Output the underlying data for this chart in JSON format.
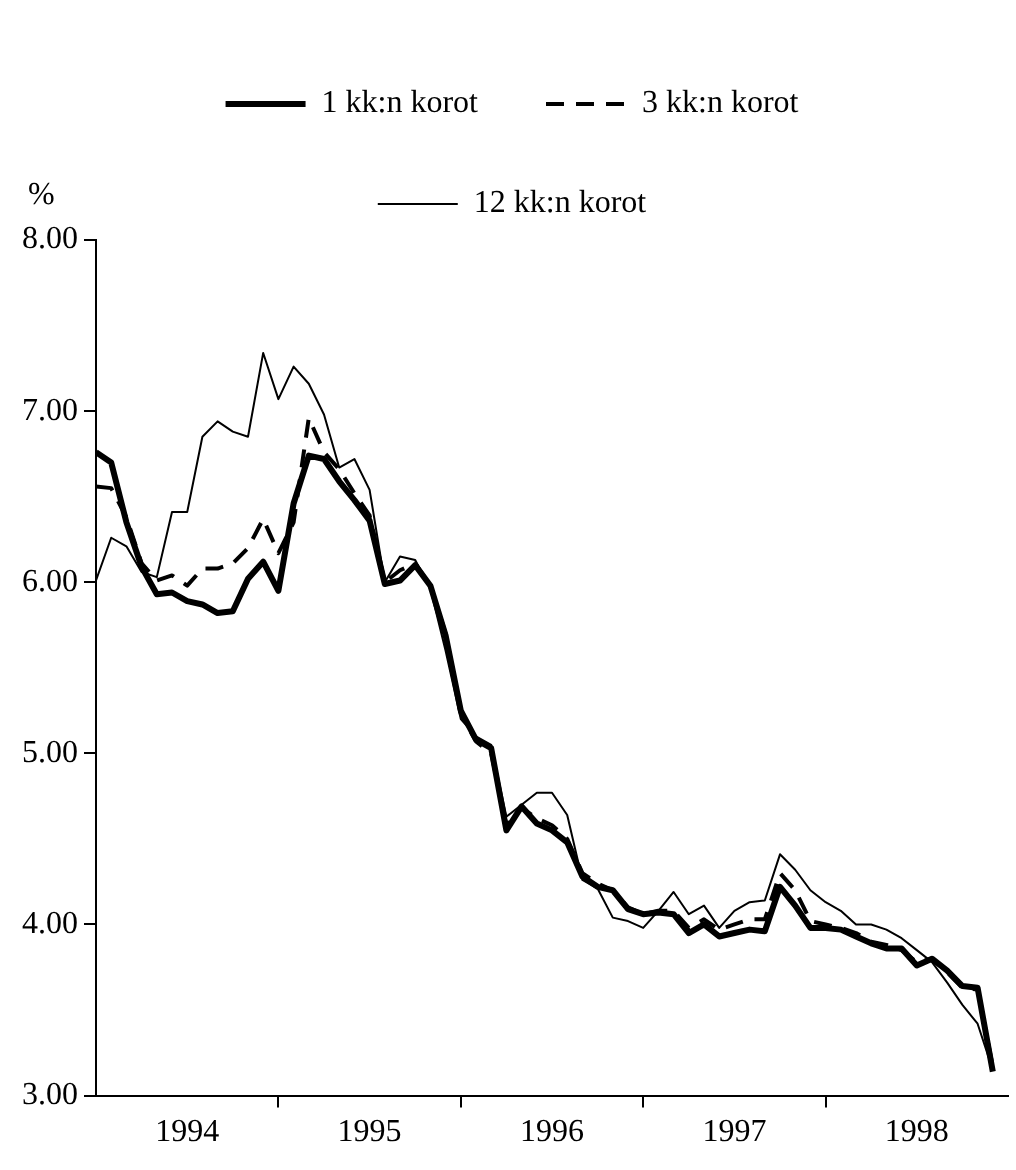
{
  "chart_data": {
    "type": "line",
    "ylabel": "%",
    "x": [
      "1994-01",
      "1994-02",
      "1994-03",
      "1994-04",
      "1994-05",
      "1994-06",
      "1994-07",
      "1994-08",
      "1994-09",
      "1994-10",
      "1994-11",
      "1994-12",
      "1995-01",
      "1995-02",
      "1995-03",
      "1995-04",
      "1995-05",
      "1995-06",
      "1995-07",
      "1995-08",
      "1995-09",
      "1995-10",
      "1995-11",
      "1995-12",
      "1996-01",
      "1996-02",
      "1996-03",
      "1996-04",
      "1996-05",
      "1996-06",
      "1996-07",
      "1996-08",
      "1996-09",
      "1996-10",
      "1996-11",
      "1996-12",
      "1997-01",
      "1997-02",
      "1997-03",
      "1997-04",
      "1997-05",
      "1997-06",
      "1997-07",
      "1997-08",
      "1997-09",
      "1997-10",
      "1997-11",
      "1997-12",
      "1998-01",
      "1998-02",
      "1998-03",
      "1998-04",
      "1998-05",
      "1998-06",
      "1998-07",
      "1998-08",
      "1998-09",
      "1998-10",
      "1998-11",
      "1998-12"
    ],
    "series": [
      {
        "name": "1 kk:n korot",
        "color": "#000000",
        "line_style": "solid",
        "values": [
          6.76,
          6.7,
          6.35,
          6.09,
          5.93,
          5.94,
          5.89,
          5.87,
          5.82,
          5.83,
          6.02,
          6.12,
          5.95,
          6.46,
          6.74,
          6.72,
          6.59,
          6.48,
          6.36,
          5.99,
          6.01,
          6.1,
          5.98,
          5.69,
          5.25,
          5.08,
          5.03,
          4.55,
          4.69,
          4.59,
          4.55,
          4.48,
          4.28,
          4.22,
          4.2,
          4.09,
          4.06,
          4.07,
          4.06,
          3.95,
          4.0,
          3.93,
          3.95,
          3.97,
          3.96,
          4.22,
          4.11,
          3.98,
          3.98,
          3.97,
          3.93,
          3.89,
          3.86,
          3.86,
          3.76,
          3.8,
          3.73,
          3.64,
          3.63,
          3.14
        ]
      },
      {
        "name": "3 kk:n korot",
        "color": "#000000",
        "line_style": "dashed",
        "values": [
          6.56,
          6.55,
          6.38,
          6.11,
          6.01,
          6.04,
          5.98,
          6.08,
          6.08,
          6.11,
          6.2,
          6.37,
          6.17,
          6.35,
          6.96,
          6.76,
          6.66,
          6.52,
          6.39,
          6.0,
          6.07,
          6.11,
          5.98,
          5.7,
          5.23,
          5.07,
          5.0,
          4.58,
          4.68,
          4.62,
          4.58,
          4.5,
          4.3,
          4.24,
          4.2,
          4.1,
          4.06,
          4.08,
          4.08,
          3.98,
          4.03,
          3.97,
          4.0,
          4.03,
          4.03,
          4.3,
          4.2,
          4.02,
          4.0,
          3.98,
          3.95,
          3.9,
          3.88,
          3.85,
          3.78,
          3.8,
          3.72,
          3.63,
          3.62,
          3.17
        ]
      },
      {
        "name": "12 kk:n korot",
        "color": "#000000",
        "line_style": "solid",
        "values": [
          6.01,
          6.26,
          6.21,
          6.06,
          6.03,
          6.41,
          6.41,
          6.85,
          6.94,
          6.88,
          6.85,
          7.34,
          7.07,
          7.26,
          7.16,
          6.98,
          6.67,
          6.72,
          6.54,
          6.0,
          6.15,
          6.13,
          5.96,
          5.6,
          5.2,
          5.1,
          5.05,
          4.63,
          4.7,
          4.77,
          4.77,
          4.64,
          4.26,
          4.21,
          4.04,
          4.02,
          3.98,
          4.08,
          4.19,
          4.06,
          4.11,
          3.98,
          4.08,
          4.13,
          4.14,
          4.41,
          4.32,
          4.2,
          4.13,
          4.08,
          4.0,
          4.0,
          3.97,
          3.92,
          3.85,
          3.78,
          3.66,
          3.53,
          3.42,
          3.15
        ]
      }
    ],
    "xlim": [
      "1994-01",
      "1999-01"
    ],
    "xticks": [
      {
        "value": "1994-07",
        "label": "1994"
      },
      {
        "value": "1995-01",
        "label": null
      },
      {
        "value": "1995-07",
        "label": "1995"
      },
      {
        "value": "1996-01",
        "label": null
      },
      {
        "value": "1996-07",
        "label": "1996"
      },
      {
        "value": "1997-01",
        "label": null
      },
      {
        "value": "1997-07",
        "label": "1997"
      },
      {
        "value": "1998-01",
        "label": null
      },
      {
        "value": "1998-07",
        "label": "1998"
      }
    ],
    "ylim": [
      3,
      8
    ],
    "yticks": [
      {
        "value": 3,
        "label": "3.00"
      },
      {
        "value": 4,
        "label": "4.00"
      },
      {
        "value": 5,
        "label": "5.00"
      },
      {
        "value": 6,
        "label": "6.00"
      },
      {
        "value": 7,
        "label": "7.00"
      },
      {
        "value": 8,
        "label": "8.00"
      }
    ],
    "grid": false,
    "legend": "top",
    "marker": "none"
  }
}
